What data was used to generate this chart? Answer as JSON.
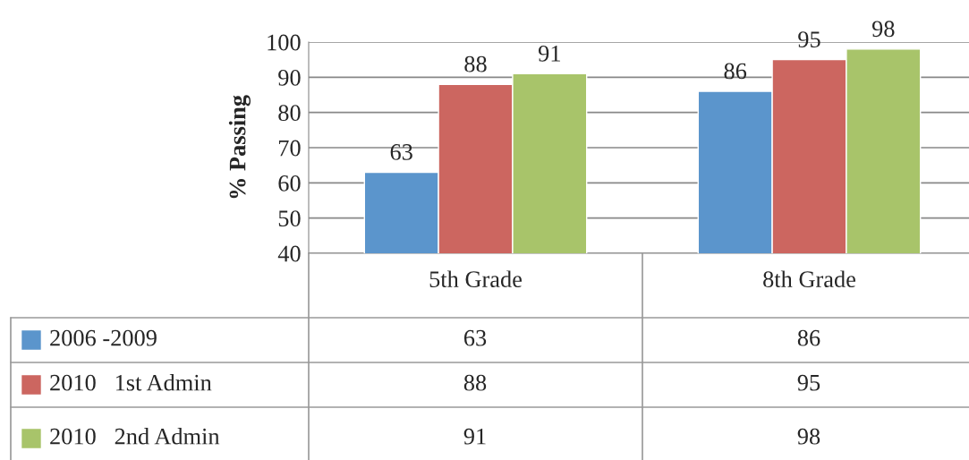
{
  "chart_data": {
    "type": "bar",
    "ylabel": "% Passing",
    "categories": [
      "5th Grade",
      "8th Grade"
    ],
    "series": [
      {
        "name": "2006 -2009",
        "color": "#5b95cc",
        "values": [
          63,
          86
        ],
        "value_labels": [
          "63",
          "86"
        ]
      },
      {
        "name": "2010   1st Admin",
        "color": "#cc6660",
        "values": [
          88,
          95
        ],
        "value_labels": [
          "88",
          "95"
        ]
      },
      {
        "name": "2010   2nd Admin",
        "color": "#a8c46a",
        "values": [
          91,
          98
        ],
        "value_labels": [
          "91",
          "98"
        ]
      }
    ],
    "ylim": [
      40,
      100
    ],
    "yticks": [
      40,
      50,
      60,
      70,
      80,
      90,
      100
    ],
    "grid": "y",
    "annotations": [
      "63",
      "86",
      "88",
      "95",
      "91",
      "98"
    ],
    "legend": "bottom"
  }
}
